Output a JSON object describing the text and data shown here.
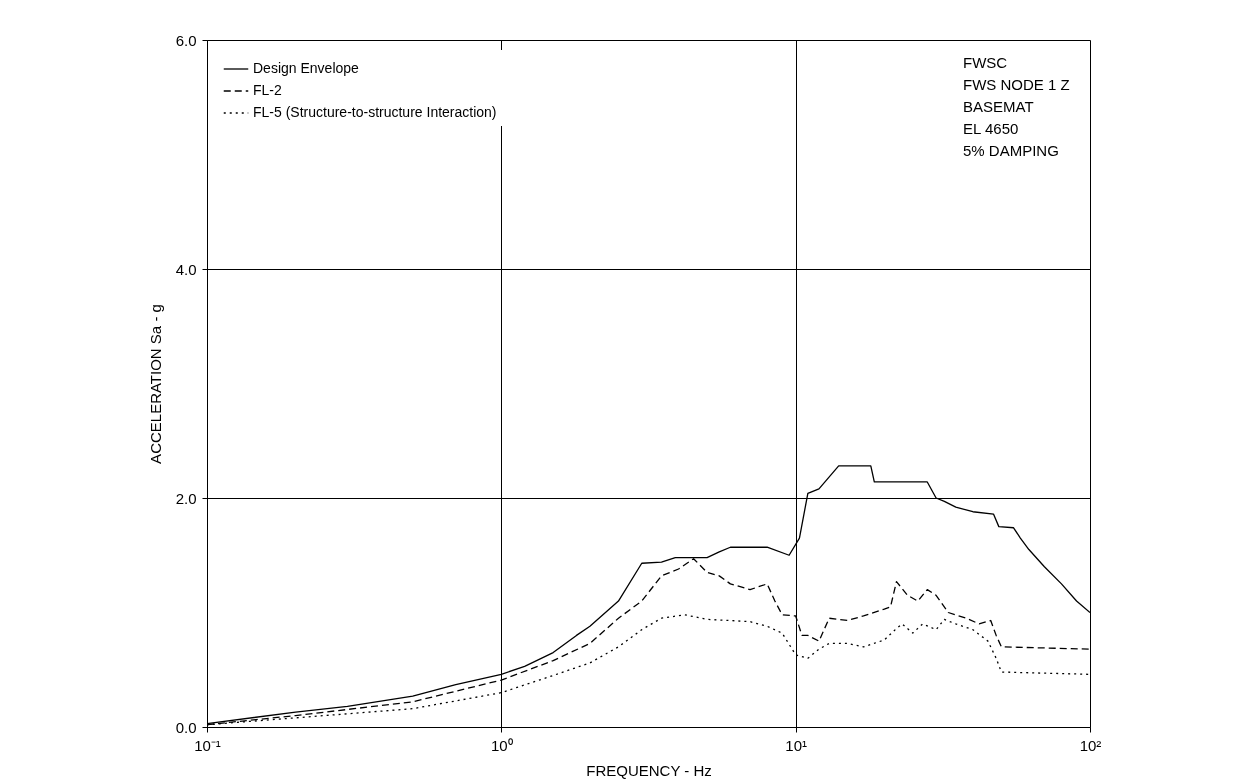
{
  "chart_data": {
    "type": "line",
    "xlabel": "FREQUENCY - Hz",
    "ylabel": "ACCELERATION Sa - g",
    "log": "x",
    "xlim": [
      0.1,
      100
    ],
    "xticks": [
      {
        "value": 0.1,
        "label": "10⁻¹"
      },
      {
        "value": 1,
        "label": "10⁰"
      },
      {
        "value": 10,
        "label": "10¹"
      },
      {
        "value": 100,
        "label": "10²"
      }
    ],
    "ylim": [
      0,
      6
    ],
    "yticks": [
      {
        "value": 0,
        "label": "0.0"
      },
      {
        "value": 2,
        "label": "2.0"
      },
      {
        "value": 4,
        "label": "4.0"
      },
      {
        "value": 6,
        "label": "6.0"
      }
    ],
    "grid": true,
    "legend": "top left",
    "marker": "none",
    "annotations": [
      "FWSC",
      "FWS NODE  1 Z",
      "BASEMAT",
      "EL 4650",
      "5% DAMPING"
    ],
    "series": [
      {
        "name": "Design Envelope",
        "color": "#000000",
        "line_style": "solid",
        "x": [
          0.1,
          0.2,
          0.3,
          0.5,
          0.7,
          1.0,
          1.2,
          1.5,
          1.8,
          2.0,
          2.5,
          3.0,
          3.5,
          3.9,
          5.0,
          5.5,
          6.0,
          8.0,
          9.5,
          10.3,
          11,
          12,
          14,
          18,
          18.5,
          20,
          28,
          30,
          32,
          35,
          40,
          47,
          49,
          55,
          58,
          62,
          70,
          80,
          90,
          100
        ],
        "values": [
          0.03,
          0.13,
          0.18,
          0.27,
          0.37,
          0.46,
          0.53,
          0.65,
          0.8,
          0.88,
          1.1,
          1.43,
          1.44,
          1.48,
          1.48,
          1.53,
          1.57,
          1.57,
          1.5,
          1.65,
          2.04,
          2.08,
          2.28,
          2.28,
          2.14,
          2.14,
          2.14,
          2.0,
          1.97,
          1.92,
          1.88,
          1.86,
          1.75,
          1.74,
          1.65,
          1.55,
          1.4,
          1.25,
          1.1,
          1.0
        ]
      },
      {
        "name": "FL-2",
        "color": "#000000",
        "line_style": "dashed",
        "x": [
          0.1,
          0.2,
          0.5,
          1.0,
          1.5,
          2.0,
          2.5,
          3.0,
          3.5,
          4.0,
          4.5,
          5.0,
          5.5,
          6,
          7,
          8,
          8.5,
          9,
          10,
          10.5,
          11,
          12,
          13,
          15,
          17,
          20,
          21,
          22,
          24,
          26,
          28,
          30,
          33,
          38,
          42,
          46,
          48,
          50,
          100
        ],
        "values": [
          0.02,
          0.1,
          0.22,
          0.41,
          0.58,
          0.73,
          0.95,
          1.1,
          1.32,
          1.38,
          1.47,
          1.35,
          1.32,
          1.25,
          1.2,
          1.25,
          1.1,
          0.98,
          0.97,
          0.8,
          0.8,
          0.75,
          0.95,
          0.93,
          0.97,
          1.03,
          1.05,
          1.27,
          1.15,
          1.1,
          1.2,
          1.15,
          1.0,
          0.95,
          0.9,
          0.93,
          0.8,
          0.7,
          0.68
        ]
      },
      {
        "name": "FL-5 (Structure-to-structure Interaction)",
        "color": "#000000",
        "line_style": "dotted",
        "x": [
          0.1,
          0.2,
          0.5,
          1.0,
          1.5,
          2.0,
          2.5,
          3,
          3.5,
          4.2,
          5,
          6,
          7,
          8,
          9,
          10,
          11,
          12,
          13,
          15,
          17,
          20,
          22,
          23,
          25,
          27,
          30,
          32,
          35,
          40,
          45,
          48,
          50,
          100
        ],
        "values": [
          0.02,
          0.08,
          0.16,
          0.3,
          0.45,
          0.56,
          0.7,
          0.85,
          0.95,
          0.98,
          0.94,
          0.93,
          0.92,
          0.88,
          0.82,
          0.63,
          0.6,
          0.68,
          0.73,
          0.73,
          0.7,
          0.76,
          0.86,
          0.9,
          0.82,
          0.9,
          0.85,
          0.94,
          0.9,
          0.85,
          0.75,
          0.6,
          0.48,
          0.46
        ]
      }
    ]
  }
}
